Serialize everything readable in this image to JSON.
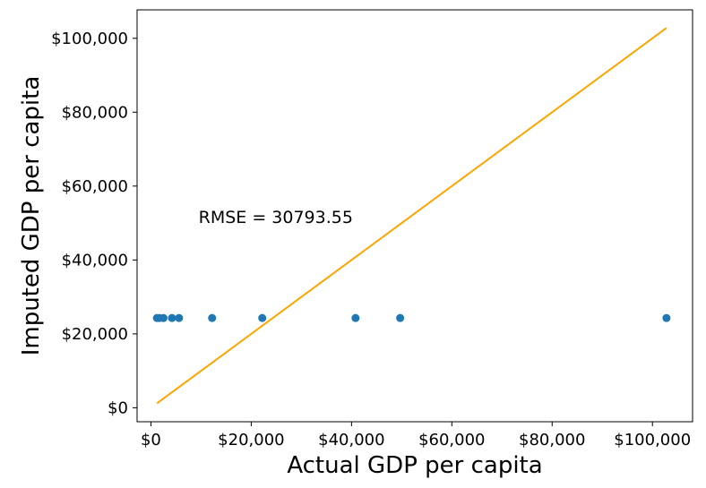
{
  "chart_data": {
    "type": "scatter",
    "xlabel": "Actual GDP per capita",
    "ylabel": "Imputed GDP per capita",
    "xlim": [
      -2760,
      108000
    ],
    "ylim": [
      -3780,
      107700
    ],
    "x_ticks": [
      {
        "value": 0,
        "label": "$0"
      },
      {
        "value": 20000,
        "label": "$20,000"
      },
      {
        "value": 40000,
        "label": "$40,000"
      },
      {
        "value": 60000,
        "label": "$60,000"
      },
      {
        "value": 80000,
        "label": "$80,000"
      },
      {
        "value": 100000,
        "label": "$100,000"
      }
    ],
    "y_ticks": [
      {
        "value": 0,
        "label": "$0"
      },
      {
        "value": 20000,
        "label": "$20,000"
      },
      {
        "value": 40000,
        "label": "$40,000"
      },
      {
        "value": 60000,
        "label": "$60,000"
      },
      {
        "value": 80000,
        "label": "$80,000"
      },
      {
        "value": 100000,
        "label": "$100,000"
      }
    ],
    "grid": false,
    "series": [
      {
        "kind": "scatter",
        "color": "#1f77b4",
        "points": [
          {
            "x": 1200,
            "y": 24300
          },
          {
            "x": 1700,
            "y": 24300
          },
          {
            "x": 2500,
            "y": 24300
          },
          {
            "x": 4200,
            "y": 24300
          },
          {
            "x": 5600,
            "y": 24300
          },
          {
            "x": 12200,
            "y": 24300
          },
          {
            "x": 22200,
            "y": 24300
          },
          {
            "x": 40800,
            "y": 24300
          },
          {
            "x": 49700,
            "y": 24300
          },
          {
            "x": 102800,
            "y": 24300
          }
        ]
      },
      {
        "kind": "line",
        "color": "#ffa500",
        "points": [
          {
            "x": 1200,
            "y": 1200
          },
          {
            "x": 102800,
            "y": 102800
          }
        ]
      }
    ],
    "annotations": [
      {
        "text": "RMSE = 30793.55",
        "x": 9500,
        "y": 50000
      }
    ]
  }
}
